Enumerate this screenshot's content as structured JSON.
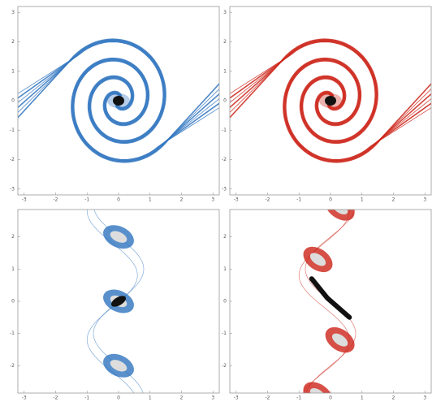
{
  "chart_data": [
    {
      "type": "image",
      "color": "#2f74bf",
      "xlim": [
        -3.2,
        3.2
      ],
      "ylim": [
        -3.2,
        3.2
      ],
      "xticks": [
        -3,
        -2,
        -1,
        0,
        1,
        2,
        3
      ],
      "yticks": [
        -3,
        -2,
        -1,
        0,
        1,
        2,
        3
      ]
    },
    {
      "type": "image",
      "color": "#cc2419",
      "xlim": [
        -3.2,
        3.2
      ],
      "ylim": [
        -3.2,
        3.2
      ],
      "xticks": [
        -3,
        -2,
        -1,
        0,
        1,
        2,
        3
      ],
      "yticks": [
        -3,
        -2,
        -1,
        0,
        1,
        2,
        3
      ]
    },
    {
      "type": "image",
      "color": "#2f74bf",
      "xlim": [
        -3.2,
        3.2
      ],
      "ylim": [
        -2.85,
        2.85
      ],
      "xticks": [
        -3,
        -2,
        -1,
        0,
        1,
        2,
        3
      ],
      "yticks": [
        -2,
        -1,
        0,
        1,
        2
      ]
    },
    {
      "type": "image",
      "color": "#cc2419",
      "xlim": [
        -3.2,
        3.2
      ],
      "ylim": [
        -2.85,
        2.85
      ],
      "xticks": [
        -3,
        -2,
        -1,
        0,
        1,
        2,
        3
      ],
      "yticks": [
        -2,
        -1,
        0,
        1,
        2
      ]
    }
  ]
}
